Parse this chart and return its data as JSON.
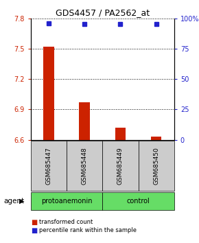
{
  "title": "GDS4457 / PA2562_at",
  "samples": [
    "GSM685447",
    "GSM685448",
    "GSM685449",
    "GSM685450"
  ],
  "bar_values": [
    7.52,
    6.97,
    6.72,
    6.63
  ],
  "bar_baseline": 6.6,
  "percentile_values": [
    96,
    95,
    95,
    95
  ],
  "ylim_left": [
    6.6,
    7.8
  ],
  "ylim_right": [
    0,
    100
  ],
  "yticks_left": [
    6.6,
    6.9,
    7.2,
    7.5,
    7.8
  ],
  "yticks_right": [
    0,
    25,
    50,
    75,
    100
  ],
  "bar_color": "#cc2200",
  "percentile_color": "#2222cc",
  "group_labels": [
    "protoanemonin",
    "control"
  ],
  "group_color": "#66dd66",
  "legend_red": "transformed count",
  "legend_blue": "percentile rank within the sample",
  "agent_label": "agent",
  "figsize": [
    2.9,
    3.54
  ],
  "dpi": 100
}
